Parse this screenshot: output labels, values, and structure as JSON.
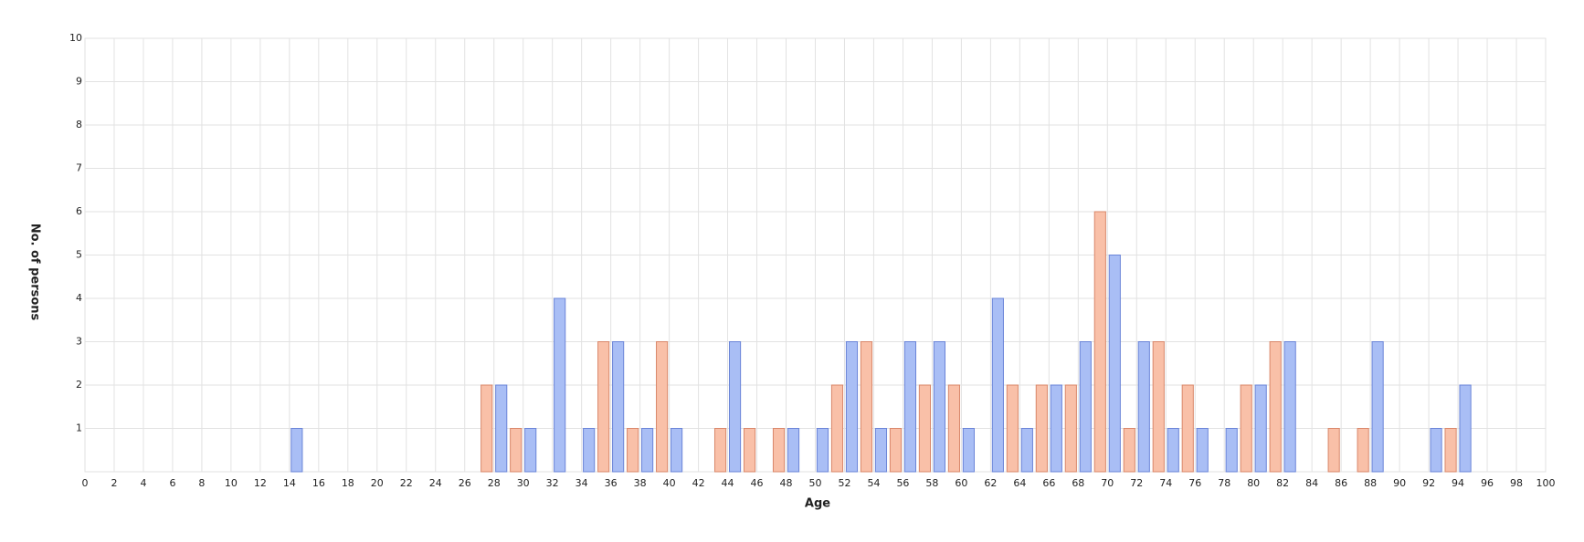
{
  "chart_data": {
    "type": "bar",
    "x_label": "Age",
    "y_label": "No. of persons",
    "xlim": [
      0,
      100
    ],
    "xticks": [
      0,
      2,
      4,
      6,
      8,
      10,
      12,
      14,
      16,
      18,
      20,
      22,
      24,
      26,
      28,
      30,
      32,
      34,
      36,
      38,
      40,
      42,
      44,
      46,
      48,
      50,
      52,
      54,
      56,
      58,
      60,
      62,
      64,
      66,
      68,
      70,
      72,
      74,
      76,
      78,
      80,
      82,
      84,
      86,
      88,
      90,
      92,
      94,
      96,
      98,
      100
    ],
    "ylim": [
      0,
      10
    ],
    "yticks": [
      1,
      2,
      3,
      4,
      5,
      6,
      7,
      8,
      9,
      10
    ],
    "grid": true,
    "series": [
      {
        "color": "#a9bef5",
        "x": [
          14,
          28,
          30,
          32,
          34,
          36,
          38,
          40,
          44,
          48,
          50,
          52,
          54,
          56,
          58,
          60,
          62,
          64,
          66,
          68,
          70,
          72,
          74,
          76,
          78,
          80,
          82,
          88,
          92,
          94
        ],
        "values": [
          1,
          2,
          1,
          4,
          1,
          3,
          1,
          1,
          3,
          1,
          1,
          3,
          1,
          3,
          3,
          1,
          4,
          1,
          2,
          3,
          5,
          3,
          1,
          1,
          1,
          2,
          3,
          3,
          1,
          2
        ]
      },
      {
        "color": "#f9c0a8",
        "x": [
          27,
          29,
          35,
          37,
          39,
          43,
          45,
          47,
          51,
          53,
          55,
          57,
          59,
          63,
          65,
          67,
          69,
          71,
          73,
          75,
          79,
          81,
          85,
          87,
          93
        ],
        "values": [
          2,
          1,
          3,
          1,
          3,
          1,
          1,
          1,
          2,
          3,
          1,
          2,
          2,
          2,
          2,
          2,
          6,
          1,
          3,
          2,
          2,
          3,
          1,
          1,
          1
        ]
      }
    ]
  }
}
